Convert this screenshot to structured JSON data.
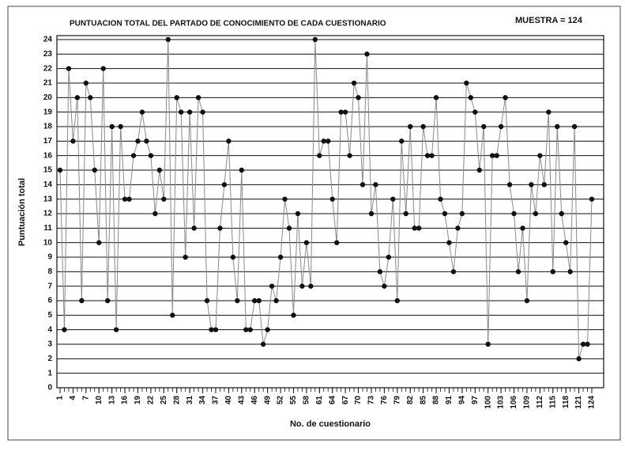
{
  "chart_data": {
    "type": "line",
    "title": "PUNTUACION TOTAL DEL PARTADO DE CONOCIMIENTO DE CADA CUESTIONARIO",
    "subtitle": "MUESTRA = 124",
    "x_label": "No. de cuestionario",
    "y_label": "Puntuación total",
    "x": [
      1,
      2,
      3,
      4,
      5,
      6,
      7,
      8,
      9,
      10,
      11,
      12,
      13,
      14,
      15,
      16,
      17,
      18,
      19,
      20,
      21,
      22,
      23,
      24,
      25,
      26,
      27,
      28,
      29,
      30,
      31,
      32,
      33,
      34,
      35,
      36,
      37,
      38,
      39,
      40,
      41,
      42,
      43,
      44,
      45,
      46,
      47,
      48,
      49,
      50,
      51,
      52,
      53,
      54,
      55,
      56,
      57,
      58,
      59,
      60,
      61,
      62,
      63,
      64,
      65,
      66,
      67,
      68,
      69,
      70,
      71,
      72,
      73,
      74,
      75,
      76,
      77,
      78,
      79,
      80,
      81,
      82,
      83,
      84,
      85,
      86,
      87,
      88,
      89,
      90,
      91,
      92,
      93,
      94,
      95,
      96,
      97,
      98,
      99,
      100,
      101,
      102,
      103,
      104,
      105,
      106,
      107,
      108,
      109,
      110,
      111,
      112,
      113,
      114,
      115,
      116,
      117,
      118,
      119,
      120,
      121,
      122,
      123,
      124
    ],
    "series": [
      {
        "color": "#8a8a8a",
        "values": [
          15,
          4,
          22,
          17,
          20,
          6,
          21,
          20,
          15,
          10,
          22,
          6,
          18,
          4,
          18,
          13,
          13,
          16,
          17,
          19,
          17,
          16,
          12,
          15,
          13,
          24,
          5,
          20,
          19,
          9,
          19,
          11,
          20,
          19,
          6,
          4,
          4,
          11,
          14,
          17,
          9,
          6,
          15,
          4,
          4,
          6,
          6,
          3,
          4,
          7,
          6,
          9,
          13,
          11,
          5,
          12,
          7,
          10,
          7,
          24,
          16,
          17,
          17,
          13,
          10,
          19,
          19,
          16,
          21,
          20,
          14,
          23,
          12,
          14,
          8,
          7,
          9,
          13,
          6,
          17,
          12,
          18,
          11,
          11,
          18,
          16,
          16,
          20,
          13,
          12,
          10,
          8,
          11,
          12,
          21,
          20,
          19,
          15,
          18,
          3,
          16,
          16,
          18,
          20,
          14,
          12,
          8,
          11,
          6,
          14,
          12,
          16,
          14,
          19,
          8,
          18,
          12,
          10,
          8,
          18,
          2,
          3,
          3,
          13
        ]
      }
    ],
    "xlim": [
      1,
      124
    ],
    "xticks": [
      1,
      4,
      7,
      10,
      13,
      16,
      19,
      22,
      25,
      28,
      31,
      34,
      37,
      40,
      43,
      46,
      49,
      52,
      55,
      58,
      61,
      64,
      67,
      70,
      73,
      76,
      79,
      82,
      85,
      88,
      91,
      94,
      97,
      100,
      103,
      106,
      109,
      112,
      115,
      118,
      121,
      124
    ],
    "ylim": [
      0,
      24
    ],
    "yticks": [
      0,
      1,
      2,
      3,
      4,
      5,
      6,
      7,
      8,
      9,
      10,
      11,
      12,
      13,
      14,
      15,
      16,
      17,
      18,
      19,
      20,
      21,
      22,
      23,
      24
    ],
    "grid": true
  }
}
